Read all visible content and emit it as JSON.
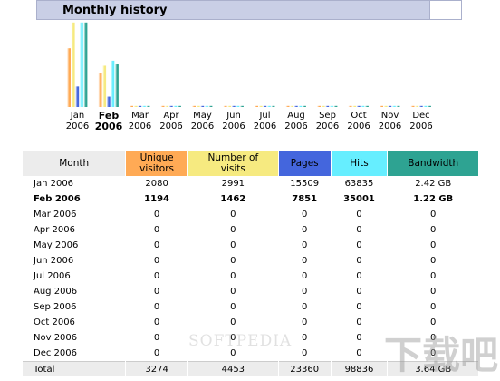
{
  "header": {
    "title": "Monthly history"
  },
  "colors": {
    "unique": "#ffaa55",
    "visits": "#f6ea80",
    "pages": "#4466dd",
    "hits": "#66eeff",
    "bandwidth": "#2ea392"
  },
  "chart_data": {
    "type": "bar",
    "categories": [
      "Jan 2006",
      "Feb 2006",
      "Mar 2006",
      "Apr 2006",
      "May 2006",
      "Jun 2006",
      "Jul 2006",
      "Aug 2006",
      "Sep 2006",
      "Oct 2006",
      "Nov 2006",
      "Dec 2006"
    ],
    "series": [
      {
        "name": "Unique visitors",
        "values": [
          2080,
          1194,
          0,
          0,
          0,
          0,
          0,
          0,
          0,
          0,
          0,
          0
        ]
      },
      {
        "name": "Number of visits",
        "values": [
          2991,
          1462,
          0,
          0,
          0,
          0,
          0,
          0,
          0,
          0,
          0,
          0
        ]
      },
      {
        "name": "Pages",
        "values": [
          15509,
          7851,
          0,
          0,
          0,
          0,
          0,
          0,
          0,
          0,
          0,
          0
        ]
      },
      {
        "name": "Hits",
        "values": [
          63835,
          35001,
          0,
          0,
          0,
          0,
          0,
          0,
          0,
          0,
          0,
          0
        ]
      },
      {
        "name": "Bandwidth",
        "values": [
          2.42,
          1.22,
          0,
          0,
          0,
          0,
          0,
          0,
          0,
          0,
          0,
          0
        ]
      }
    ],
    "month_labels": [
      [
        "Jan",
        "2006"
      ],
      [
        "Feb",
        "2006"
      ],
      [
        "Mar",
        "2006"
      ],
      [
        "Apr",
        "2006"
      ],
      [
        "May",
        "2006"
      ],
      [
        "Jun",
        "2006"
      ],
      [
        "Jul",
        "2006"
      ],
      [
        "Aug",
        "2006"
      ],
      [
        "Sep",
        "2006"
      ],
      [
        "Oct",
        "2006"
      ],
      [
        "Nov",
        "2006"
      ],
      [
        "Dec",
        "2006"
      ]
    ],
    "bold_month_index": 1
  },
  "table": {
    "headers": {
      "month": "Month",
      "unique": [
        "Unique",
        "visitors"
      ],
      "visits": [
        "Number of",
        "visits"
      ],
      "pages": "Pages",
      "hits": "Hits",
      "bandwidth": "Bandwidth"
    },
    "rows": [
      [
        "Jan 2006",
        "2080",
        "2991",
        "15509",
        "63835",
        "2.42 GB"
      ],
      [
        "Feb 2006",
        "1194",
        "1462",
        "7851",
        "35001",
        "1.22 GB"
      ],
      [
        "Mar 2006",
        "0",
        "0",
        "0",
        "0",
        "0"
      ],
      [
        "Apr 2006",
        "0",
        "0",
        "0",
        "0",
        "0"
      ],
      [
        "May 2006",
        "0",
        "0",
        "0",
        "0",
        "0"
      ],
      [
        "Jun 2006",
        "0",
        "0",
        "0",
        "0",
        "0"
      ],
      [
        "Jul 2006",
        "0",
        "0",
        "0",
        "0",
        "0"
      ],
      [
        "Aug 2006",
        "0",
        "0",
        "0",
        "0",
        "0"
      ],
      [
        "Sep 2006",
        "0",
        "0",
        "0",
        "0",
        "0"
      ],
      [
        "Oct 2006",
        "0",
        "0",
        "0",
        "0",
        "0"
      ],
      [
        "Nov 2006",
        "0",
        "0",
        "0",
        "0",
        "0"
      ],
      [
        "Dec 2006",
        "0",
        "0",
        "0",
        "0",
        "0"
      ]
    ],
    "total": [
      "Total",
      "3274",
      "4453",
      "23360",
      "98836",
      "3.64 GB"
    ],
    "bold_row_index": 1
  },
  "watermark": {
    "text": "SOFTPEDIA",
    "logo": "下载吧"
  }
}
